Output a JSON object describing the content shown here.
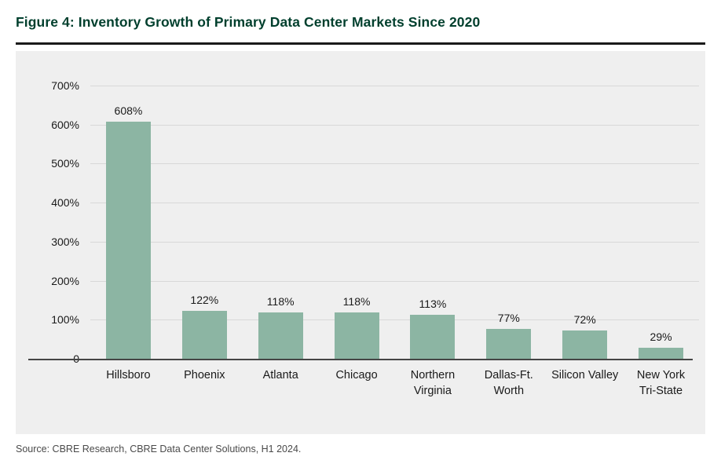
{
  "figure": {
    "title": "Figure 4: Inventory Growth of Primary Data Center Markets Since 2020",
    "source": "Source: CBRE Research, CBRE Data Center Solutions, H1 2024."
  },
  "chart_data": {
    "type": "bar",
    "title": "Inventory Growth of Primary Data Center Markets Since 2020",
    "xlabel": "",
    "ylabel": "",
    "categories": [
      "Hillsboro",
      "Phoenix",
      "Atlanta",
      "Chicago",
      "Northern Virginia",
      "Dallas-Ft. Worth",
      "Silicon Valley",
      "New York Tri-State"
    ],
    "values": [
      608,
      122,
      118,
      118,
      113,
      77,
      72,
      29
    ],
    "value_labels": [
      "608%",
      "122%",
      "118%",
      "118%",
      "113%",
      "77%",
      "72%",
      "29%"
    ],
    "ylim": [
      0,
      700
    ],
    "yticks": [
      0,
      100,
      200,
      300,
      400,
      500,
      600,
      700
    ],
    "ytick_labels": [
      "0",
      "100%",
      "200%",
      "300%",
      "400%",
      "500%",
      "600%",
      "700%"
    ],
    "grid": true,
    "legend": false,
    "colors": {
      "bar": "#8cb5a3",
      "panel_bg": "#efefef",
      "gridline": "#d8d8d8",
      "baseline": "#454545",
      "title": "#003f2d",
      "divider": "#1a1a1a",
      "text": "#1a1a1a",
      "source_text": "#4a4a4a"
    }
  }
}
